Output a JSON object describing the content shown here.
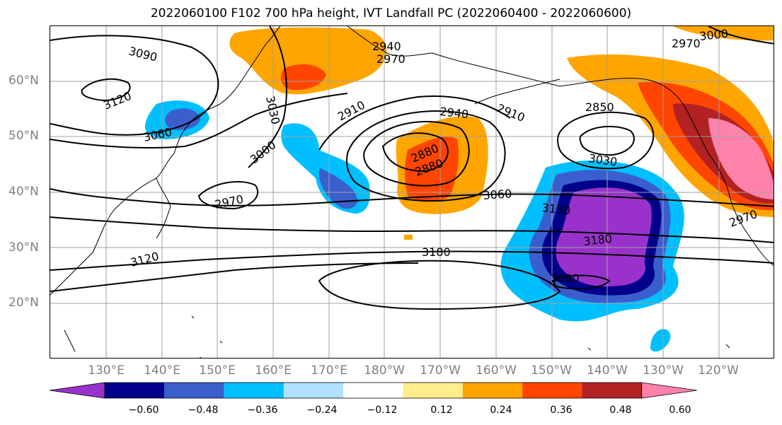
{
  "title": "2022060100 F102 700 hPa height, IVT Landfall PC (2022060400 - 2022060600)",
  "lat_labels": [
    "60°N",
    "50°N",
    "40°N",
    "30°N",
    "20°N"
  ],
  "lon_labels": [
    "130°E",
    "140°E",
    "150°E",
    "160°E",
    "170°E",
    "180°W",
    "170°W",
    "160°W",
    "150°W",
    "140°W",
    "130°W",
    "120°W"
  ],
  "contour_labels": [
    "3090",
    "3120",
    "3060",
    "3030",
    "3000",
    "2970",
    "2940",
    "2970",
    "3000",
    "2970",
    "2910",
    "2940",
    "2910",
    "2850",
    "2880",
    "2880",
    "3030",
    "3060",
    "3150",
    "3180",
    "3180",
    "3090",
    "3120",
    "2970"
  ],
  "colorbar": {
    "ticks": [
      "−0.60",
      "−0.48",
      "−0.36",
      "−0.24",
      "−0.12",
      "0.12",
      "0.24",
      "0.36",
      "0.48",
      "0.60"
    ],
    "colors": [
      "#9932cc",
      "#00008b",
      "#3a5fcd",
      "#00bfff",
      "#b0e2ff",
      "#ffffff",
      "#ffec8b",
      "#ffa500",
      "#ff4500",
      "#b22222",
      "#ff82ab"
    ]
  },
  "colors": {
    "grid": "#a0a0a0",
    "contour": "#000000",
    "tick_label": "#808080"
  }
}
